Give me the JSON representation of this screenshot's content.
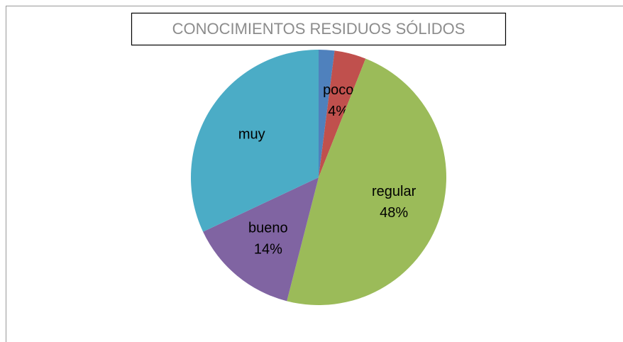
{
  "chart_data": {
    "type": "pie",
    "title": "CONOCIMIENTOS RESIDUOS SÓLIDOS",
    "categories": [
      null,
      "poco",
      "regular",
      "bueno",
      "muy"
    ],
    "values": [
      2,
      4,
      48,
      14,
      32
    ],
    "value_labels": [
      null,
      "4%",
      "48%",
      "14%",
      null
    ],
    "colors": [
      "#4f81bd",
      "#c0504d",
      "#9bbb59",
      "#8064a2",
      "#4bacc6"
    ]
  }
}
